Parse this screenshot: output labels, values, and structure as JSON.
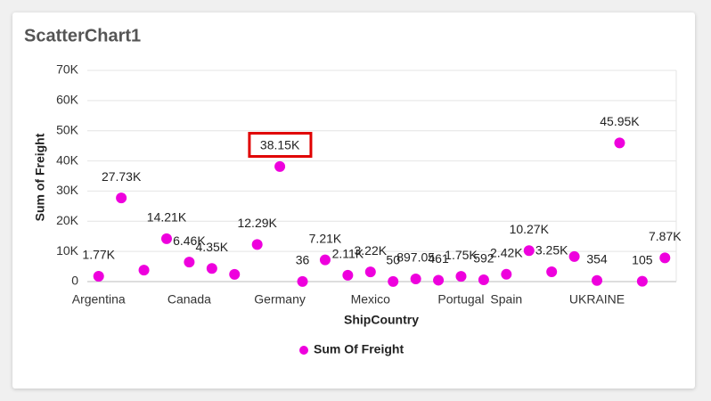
{
  "chart_data": {
    "type": "scatter",
    "title": "ScatterChart1",
    "x_label": "ShipCountry",
    "y_label": "Sum of Freight",
    "categories": [
      "Argentina",
      null,
      null,
      null,
      "Canada",
      null,
      null,
      null,
      "Germany",
      null,
      null,
      null,
      "Mexico",
      null,
      null,
      null,
      "Portugal",
      null,
      "Spain",
      null,
      null,
      null,
      "UKRAINE",
      null,
      null,
      null
    ],
    "series": [
      {
        "name": "Sum Of Freight",
        "color": "#ee00dd",
        "values": [
          1770,
          27730,
          3800,
          14210,
          6460,
          4350,
          2400,
          12290,
          38150,
          36,
          7210,
          2110,
          3220,
          50,
          897.05,
          461,
          1750,
          592,
          2420,
          10270,
          3250,
          8300,
          354,
          45950,
          105,
          7870
        ],
        "value_labels": [
          "1.77K",
          "27.73K",
          null,
          "14.21K",
          "6.46K",
          "4.35K",
          null,
          "12.29K",
          "38.15K",
          "36",
          "7.21K",
          "2.11K",
          "3.22K",
          "50",
          "897.05",
          "461",
          "1.75K",
          "592",
          "2.42K",
          "10.27K",
          "3.25K",
          null,
          "354",
          "45.95K",
          "105",
          "7.87K"
        ]
      }
    ],
    "ylim": [
      0,
      70000
    ],
    "yticks": [
      0,
      {
        "value": 10000,
        "label": "10K"
      },
      {
        "value": 20000,
        "label": "20K"
      },
      {
        "value": 30000,
        "label": "30K"
      },
      {
        "value": 40000,
        "label": "40K"
      },
      {
        "value": 50000,
        "label": "50K"
      },
      {
        "value": 60000,
        "label": "60K"
      },
      {
        "value": 70000,
        "label": "70K"
      }
    ],
    "grid": true,
    "legend": "bottom"
  }
}
